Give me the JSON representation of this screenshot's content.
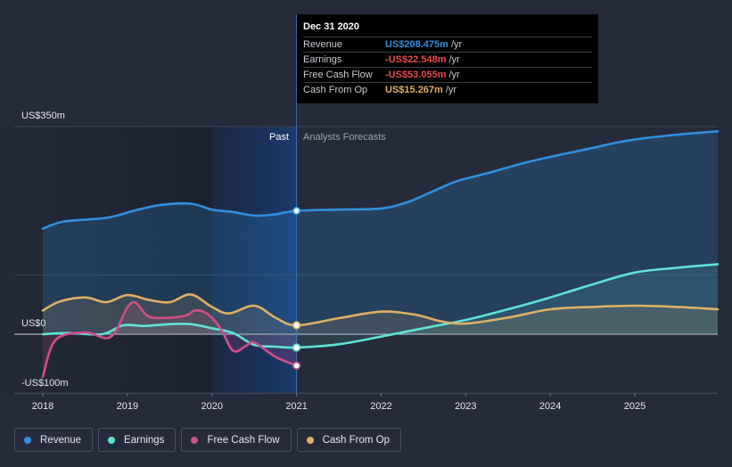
{
  "chart_data": {
    "type": "line",
    "x_ticks": [
      "2018",
      "2019",
      "2020",
      "2021",
      "2022",
      "2023",
      "2024",
      "2025"
    ],
    "y_ticks": [
      {
        "value": 350,
        "label": "US$350m"
      },
      {
        "value": 0,
        "label": "US$0"
      },
      {
        "value": -100,
        "label": "-US$100m"
      }
    ],
    "ylim": [
      -100,
      350
    ],
    "xlim": [
      2018.0,
      2025.98
    ],
    "divider_x": 2021.0,
    "past_label": "Past",
    "forecast_label": "Analysts Forecasts",
    "series": [
      {
        "name": "Revenue",
        "color": "#2f8fe0",
        "points": [
          [
            2018.0,
            178
          ],
          [
            2018.25,
            190
          ],
          [
            2018.75,
            196
          ],
          [
            2019.1,
            209
          ],
          [
            2019.4,
            218
          ],
          [
            2019.75,
            220
          ],
          [
            2020.0,
            210
          ],
          [
            2020.25,
            206
          ],
          [
            2020.5,
            200
          ],
          [
            2020.75,
            202
          ],
          [
            2021.0,
            208
          ],
          [
            2021.5,
            210
          ],
          [
            2022.0,
            212
          ],
          [
            2022.3,
            222
          ],
          [
            2022.6,
            240
          ],
          [
            2022.9,
            258
          ],
          [
            2023.3,
            273
          ],
          [
            2023.7,
            289
          ],
          [
            2024.1,
            302
          ],
          [
            2024.5,
            314
          ],
          [
            2024.9,
            326
          ],
          [
            2025.4,
            335
          ],
          [
            2025.98,
            342
          ]
        ]
      },
      {
        "name": "Earnings",
        "color": "#5fe3d4",
        "points": [
          [
            2018.0,
            0
          ],
          [
            2018.3,
            2
          ],
          [
            2018.7,
            0
          ],
          [
            2018.95,
            15
          ],
          [
            2019.2,
            14
          ],
          [
            2019.5,
            17
          ],
          [
            2019.75,
            17
          ],
          [
            2020.0,
            10
          ],
          [
            2020.25,
            2
          ],
          [
            2020.5,
            -18
          ],
          [
            2020.75,
            -21
          ],
          [
            2021.0,
            -22.5
          ],
          [
            2021.5,
            -17
          ],
          [
            2022.0,
            -4
          ],
          [
            2022.5,
            10
          ],
          [
            2023.0,
            24
          ],
          [
            2023.5,
            42
          ],
          [
            2024.0,
            62
          ],
          [
            2024.5,
            84
          ],
          [
            2025.0,
            104
          ],
          [
            2025.5,
            112
          ],
          [
            2025.98,
            118
          ]
        ]
      },
      {
        "name": "Free Cash Flow",
        "color": "#cf4f8a",
        "points": [
          [
            2018.0,
            -72
          ],
          [
            2018.15,
            -10
          ],
          [
            2018.5,
            3
          ],
          [
            2018.8,
            -5
          ],
          [
            2019.0,
            45
          ],
          [
            2019.1,
            53
          ],
          [
            2019.25,
            30
          ],
          [
            2019.5,
            28
          ],
          [
            2019.7,
            32
          ],
          [
            2019.8,
            40
          ],
          [
            2019.95,
            34
          ],
          [
            2020.1,
            10
          ],
          [
            2020.25,
            -28
          ],
          [
            2020.4,
            -20
          ],
          [
            2020.5,
            -14
          ],
          [
            2020.75,
            -38
          ],
          [
            2021.0,
            -53
          ]
        ]
      },
      {
        "name": "Cash From Op",
        "color": "#e0b063",
        "points": [
          [
            2018.0,
            40
          ],
          [
            2018.2,
            55
          ],
          [
            2018.5,
            62
          ],
          [
            2018.75,
            54
          ],
          [
            2019.0,
            66
          ],
          [
            2019.25,
            58
          ],
          [
            2019.5,
            54
          ],
          [
            2019.75,
            67
          ],
          [
            2020.0,
            46
          ],
          [
            2020.2,
            35
          ],
          [
            2020.5,
            48
          ],
          [
            2020.75,
            28
          ],
          [
            2021.0,
            15
          ],
          [
            2021.5,
            27
          ],
          [
            2022.0,
            38
          ],
          [
            2022.4,
            33
          ],
          [
            2022.7,
            22
          ],
          [
            2023.0,
            18
          ],
          [
            2023.5,
            28
          ],
          [
            2024.0,
            42
          ],
          [
            2024.5,
            46
          ],
          [
            2025.0,
            48
          ],
          [
            2025.5,
            46
          ],
          [
            2025.98,
            42
          ]
        ]
      }
    ]
  },
  "tooltip": {
    "date": "Dec 31 2020",
    "rows": [
      {
        "label": "Revenue",
        "value": "US$208.475m",
        "unit": "/yr",
        "color": "#2f8fe0"
      },
      {
        "label": "Earnings",
        "value": "-US$22.548m",
        "unit": "/yr",
        "color": "#e64a4a"
      },
      {
        "label": "Free Cash Flow",
        "value": "-US$53.055m",
        "unit": "/yr",
        "color": "#e64a4a"
      },
      {
        "label": "Cash From Op",
        "value": "US$15.267m",
        "unit": "/yr",
        "color": "#e0b063"
      }
    ]
  },
  "legend": [
    {
      "label": "Revenue",
      "color": "#2f8fe0"
    },
    {
      "label": "Earnings",
      "color": "#5fe3d4"
    },
    {
      "label": "Free Cash Flow",
      "color": "#cf4f8a"
    },
    {
      "label": "Cash From Op",
      "color": "#e0b063"
    }
  ]
}
